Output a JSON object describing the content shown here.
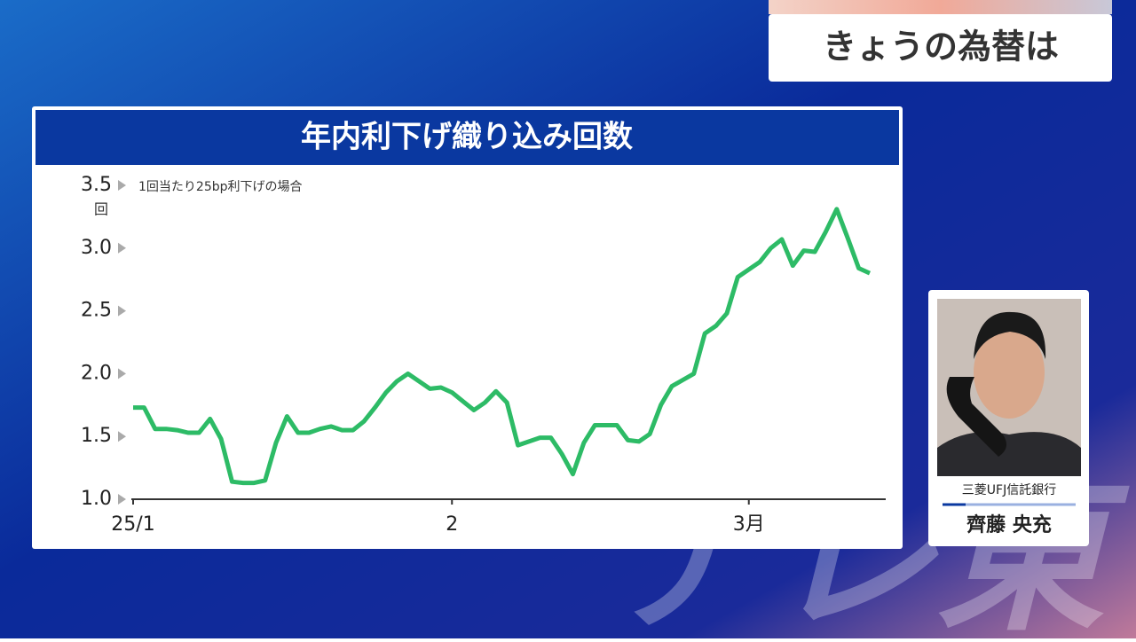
{
  "header": {
    "title": "きょうの為替は"
  },
  "guest": {
    "organization": "三菱UFJ信託銀行",
    "name": "齊藤 央充"
  },
  "watermark": "テレ東",
  "chart_data": {
    "type": "line",
    "title": "年内利下げ織り込み回数",
    "note": "1回当たり25bp利下げの場合",
    "y_unit": "回",
    "color": "#2dbb66",
    "categories": [
      "25/1",
      null,
      null,
      null,
      null,
      null,
      null,
      null,
      null,
      null,
      null,
      null,
      null,
      null,
      null,
      null,
      null,
      null,
      null,
      null,
      null,
      null,
      null,
      null,
      null,
      null,
      null,
      null,
      null,
      "2",
      null,
      null,
      null,
      null,
      null,
      null,
      null,
      null,
      null,
      null,
      null,
      null,
      null,
      null,
      null,
      null,
      null,
      null,
      null,
      null,
      null,
      null,
      null,
      null,
      null,
      null,
      "3月",
      null,
      null,
      null,
      null,
      null,
      null,
      null,
      null,
      null,
      null,
      null
    ],
    "values": [
      1.73,
      1.73,
      1.56,
      1.56,
      1.55,
      1.53,
      1.53,
      1.64,
      1.48,
      1.14,
      1.13,
      1.13,
      1.15,
      1.45,
      1.66,
      1.53,
      1.53,
      1.56,
      1.58,
      1.55,
      1.55,
      1.62,
      1.73,
      1.85,
      1.94,
      2.0,
      1.94,
      1.88,
      1.89,
      1.85,
      1.78,
      1.71,
      1.77,
      1.86,
      1.77,
      1.43,
      1.46,
      1.49,
      1.49,
      1.36,
      1.2,
      1.45,
      1.59,
      1.59,
      1.59,
      1.47,
      1.46,
      1.52,
      1.75,
      1.9,
      1.95,
      2.0,
      2.32,
      2.38,
      2.48,
      2.77,
      2.83,
      2.89,
      3.0,
      3.07,
      2.86,
      2.98,
      2.97,
      3.13,
      3.31,
      3.08,
      2.84,
      2.8
    ],
    "ylim": [
      1,
      3.5
    ],
    "yticks": [
      {
        "value": 1,
        "label": "1.0"
      },
      1.5,
      {
        "value": 2,
        "label": "2.0"
      },
      2.5,
      {
        "value": 3,
        "label": "3.0"
      },
      3.5
    ],
    "grid": false
  }
}
